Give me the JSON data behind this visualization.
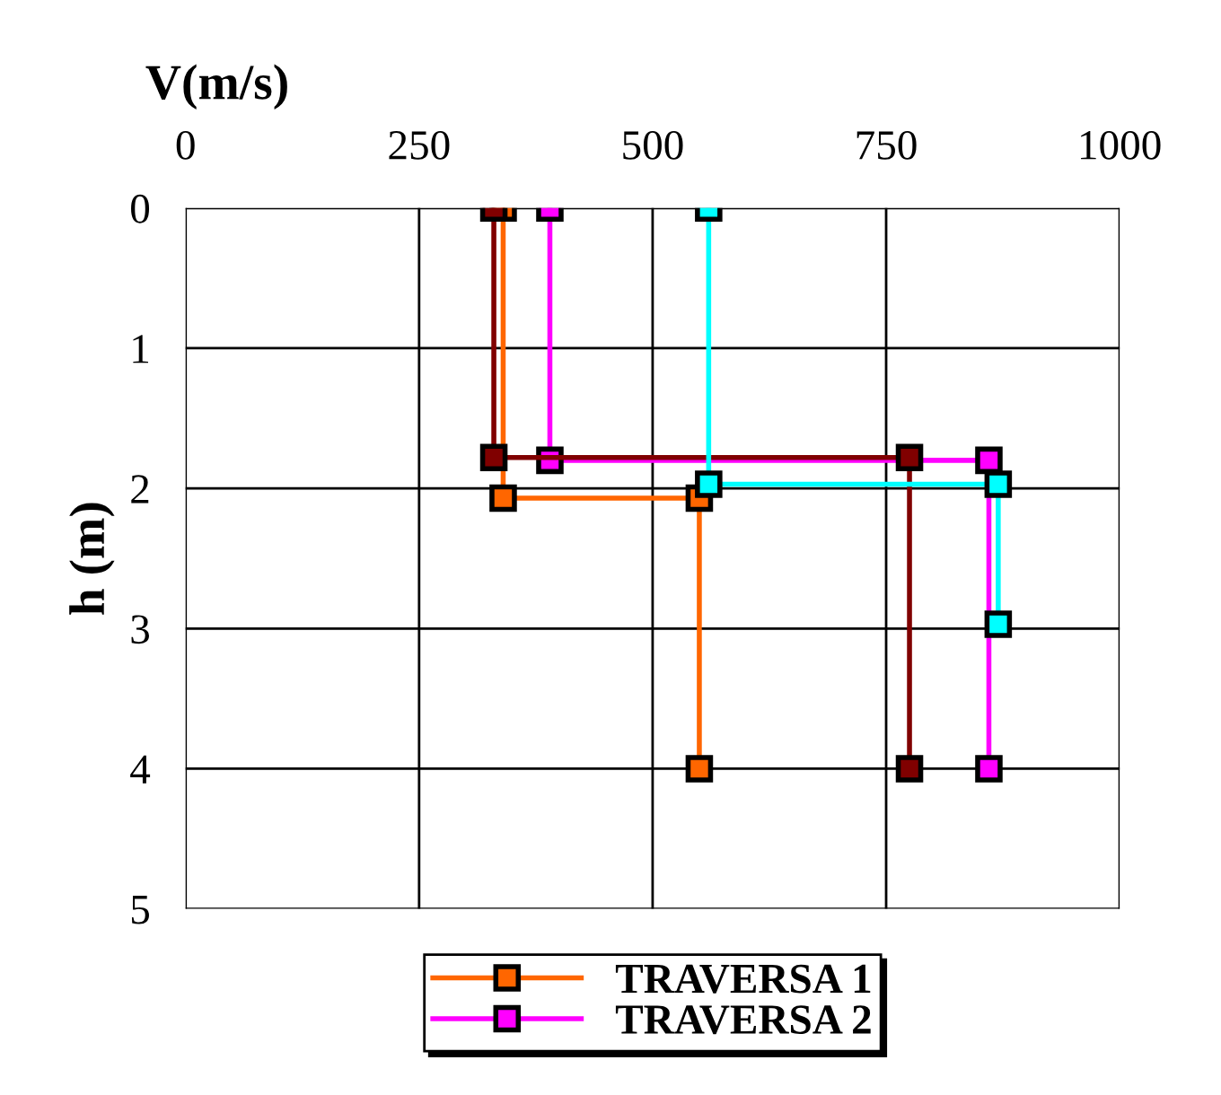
{
  "chart_data": {
    "type": "line",
    "xlabel": "V(m/s)",
    "ylabel": "h (m)",
    "xlim": [
      0,
      1000
    ],
    "xticks": [
      0,
      250,
      500,
      750,
      1000
    ],
    "ylim": [
      5,
      0
    ],
    "yticks": [
      0,
      1,
      2,
      3,
      4,
      5
    ],
    "grid": true,
    "legend": "bottom",
    "marker": "square",
    "line_style": "solid",
    "series": [
      {
        "name": "TRAVERSA 1",
        "color": "#ff6600",
        "x": [
          340,
          340,
          550,
          550
        ],
        "values": [
          0,
          2.07,
          2.07,
          4
        ]
      },
      {
        "name": "TRAVERSA 2",
        "color": "#ff00ff",
        "x": [
          390,
          390,
          860,
          860
        ],
        "values": [
          0,
          1.8,
          1.8,
          4
        ]
      },
      {
        "color": "#800000",
        "x": [
          330,
          330,
          775,
          775
        ],
        "values": [
          0,
          1.78,
          1.78,
          4
        ]
      },
      {
        "color": "#00ffff",
        "x": [
          560,
          560,
          870,
          870
        ],
        "values": [
          0,
          1.97,
          1.97,
          2.97
        ]
      }
    ]
  }
}
